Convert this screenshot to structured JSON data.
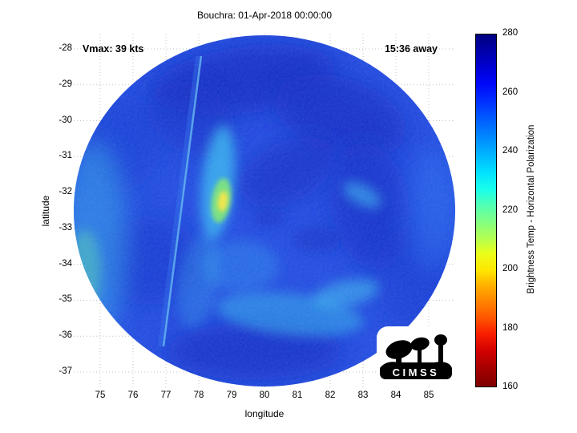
{
  "title": "Bouchra: 01-Apr-2018 00:00:00",
  "annotations": {
    "vmax": "Vmax: 39 kts",
    "time_away": "15:36 away"
  },
  "axes": {
    "x": {
      "label": "longitude",
      "ticks": [
        75,
        76,
        77,
        78,
        79,
        80,
        81,
        82,
        83,
        84,
        85
      ]
    },
    "y": {
      "label": "latitude",
      "ticks": [
        -28,
        -29,
        -30,
        -31,
        -32,
        -33,
        -34,
        -35,
        -36,
        -37
      ]
    }
  },
  "colorbar": {
    "label": "Brightness Temp - Horizontal Polarization",
    "ticks": [
      160,
      180,
      200,
      220,
      240,
      260,
      280
    ],
    "min": 160,
    "max": 280,
    "colormap": "jet",
    "colormap_stops": [
      {
        "t": 0.0,
        "color": "#7f0000"
      },
      {
        "t": 0.05,
        "color": "#a40000"
      },
      {
        "t": 0.1,
        "color": "#d10000"
      },
      {
        "t": 0.15,
        "color": "#f81e00"
      },
      {
        "t": 0.19,
        "color": "#ff5000"
      },
      {
        "t": 0.24,
        "color": "#ff8200"
      },
      {
        "t": 0.29,
        "color": "#ffb400"
      },
      {
        "t": 0.33,
        "color": "#ffe600"
      },
      {
        "t": 0.38,
        "color": "#e8ff1c"
      },
      {
        "t": 0.42,
        "color": "#b4ff50"
      },
      {
        "t": 0.47,
        "color": "#80ff84"
      },
      {
        "t": 0.52,
        "color": "#4cffb8"
      },
      {
        "t": 0.56,
        "color": "#18ffec"
      },
      {
        "t": 0.61,
        "color": "#00e0ff"
      },
      {
        "t": 0.66,
        "color": "#00b4ff"
      },
      {
        "t": 0.71,
        "color": "#0088ff"
      },
      {
        "t": 0.76,
        "color": "#005cff"
      },
      {
        "t": 0.81,
        "color": "#0030ff"
      },
      {
        "t": 0.86,
        "color": "#0008fa"
      },
      {
        "t": 0.91,
        "color": "#0000d0"
      },
      {
        "t": 0.96,
        "color": "#0000a4"
      },
      {
        "t": 1.0,
        "color": "#00007f"
      }
    ]
  },
  "logo": {
    "text": "CIMSS"
  },
  "chart_data": {
    "type": "heatmap",
    "title": "Bouchra: 01-Apr-2018 00:00:00",
    "xlabel": "longitude",
    "ylabel": "latitude",
    "xlim": [
      74.2,
      85.8
    ],
    "ylim": [
      -37.4,
      -27.6
    ],
    "value_label": "Brightness Temp - Horizontal Polarization",
    "value_range": [
      160,
      280
    ],
    "grid": "dotted",
    "storm": {
      "name": "Bouchra",
      "datetime": "01-Apr-2018 00:00:00",
      "vmax_kts": 39,
      "overpass_offset": "15:36 away"
    },
    "swath": {
      "shape": "circular disk",
      "center_lon": 80.0,
      "center_lat": -32.5,
      "radius_deg": 5.0,
      "background_temp_K": 258,
      "seam_line": {
        "from": [
          78.1,
          -27.9
        ],
        "to": [
          76.9,
          -36.6
        ]
      }
    },
    "features": [
      {
        "lon": 78.7,
        "lat": -32.4,
        "temp_K": 205,
        "desc": "coldest convective cell (yellow-green spot near seam)"
      },
      {
        "lon": 78.6,
        "lat": -31.8,
        "temp_K": 230,
        "desc": "bright cyan wedge along swath seam"
      },
      {
        "lon": 74.6,
        "lat": -33.5,
        "temp_K": 235,
        "desc": "cyan-green band on western edge of swath"
      },
      {
        "lon": 80.8,
        "lat": -34.9,
        "temp_K": 240,
        "desc": "cyan arc of cloud south of center"
      },
      {
        "lon": 83.0,
        "lat": -34.4,
        "temp_K": 245,
        "desc": "light cyan filament southeast"
      },
      {
        "lon": 79.4,
        "lat": -28.4,
        "temp_K": 272,
        "desc": "dark navy region (high TB) north of storm"
      },
      {
        "lon": 82.3,
        "lat": -30.3,
        "temp_K": 270,
        "desc": "dark navy patch northeast"
      },
      {
        "lon": 83.2,
        "lat": -32.9,
        "temp_K": 268,
        "desc": "dark comma-shaped swirl east of center"
      },
      {
        "lon": 80.0,
        "lat": -36.9,
        "temp_K": 268,
        "desc": "dark band along southern edge"
      },
      {
        "lon": 77.2,
        "lat": -34.3,
        "temp_K": 265,
        "desc": "darker blue region southwest"
      }
    ]
  }
}
